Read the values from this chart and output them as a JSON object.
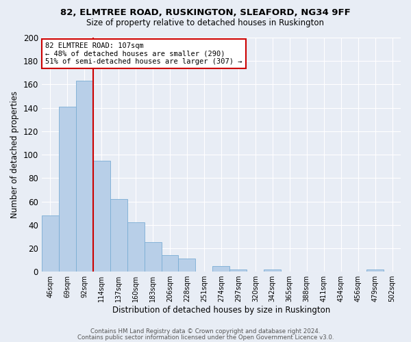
{
  "title1": "82, ELMTREE ROAD, RUSKINGTON, SLEAFORD, NG34 9FF",
  "title2": "Size of property relative to detached houses in Ruskington",
  "xlabel": "Distribution of detached houses by size in Ruskington",
  "ylabel": "Number of detached properties",
  "bar_labels": [
    "46sqm",
    "69sqm",
    "92sqm",
    "114sqm",
    "137sqm",
    "160sqm",
    "183sqm",
    "206sqm",
    "228sqm",
    "251sqm",
    "274sqm",
    "297sqm",
    "320sqm",
    "342sqm",
    "365sqm",
    "388sqm",
    "411sqm",
    "434sqm",
    "456sqm",
    "479sqm",
    "502sqm"
  ],
  "bar_heights": [
    48,
    141,
    163,
    95,
    62,
    42,
    25,
    14,
    11,
    0,
    5,
    2,
    0,
    2,
    0,
    0,
    0,
    0,
    0,
    2,
    0
  ],
  "bar_color": "#b8cfe8",
  "bar_edge_color": "#7aadd4",
  "bg_color": "#e8edf5",
  "grid_color": "#d0d8e8",
  "property_line_x": 2.5,
  "annotation_title": "82 ELMTREE ROAD: 107sqm",
  "annotation_line1": "← 48% of detached houses are smaller (290)",
  "annotation_line2": "51% of semi-detached houses are larger (307) →",
  "annotation_box_color": "#ffffff",
  "annotation_box_edge": "#cc0000",
  "vline_color": "#cc0000",
  "footer1": "Contains HM Land Registry data © Crown copyright and database right 2024.",
  "footer2": "Contains public sector information licensed under the Open Government Licence v3.0.",
  "ylim": [
    0,
    200
  ],
  "yticks": [
    0,
    20,
    40,
    60,
    80,
    100,
    120,
    140,
    160,
    180,
    200
  ],
  "title1_fontsize": 9.5,
  "title2_fontsize": 8.5
}
